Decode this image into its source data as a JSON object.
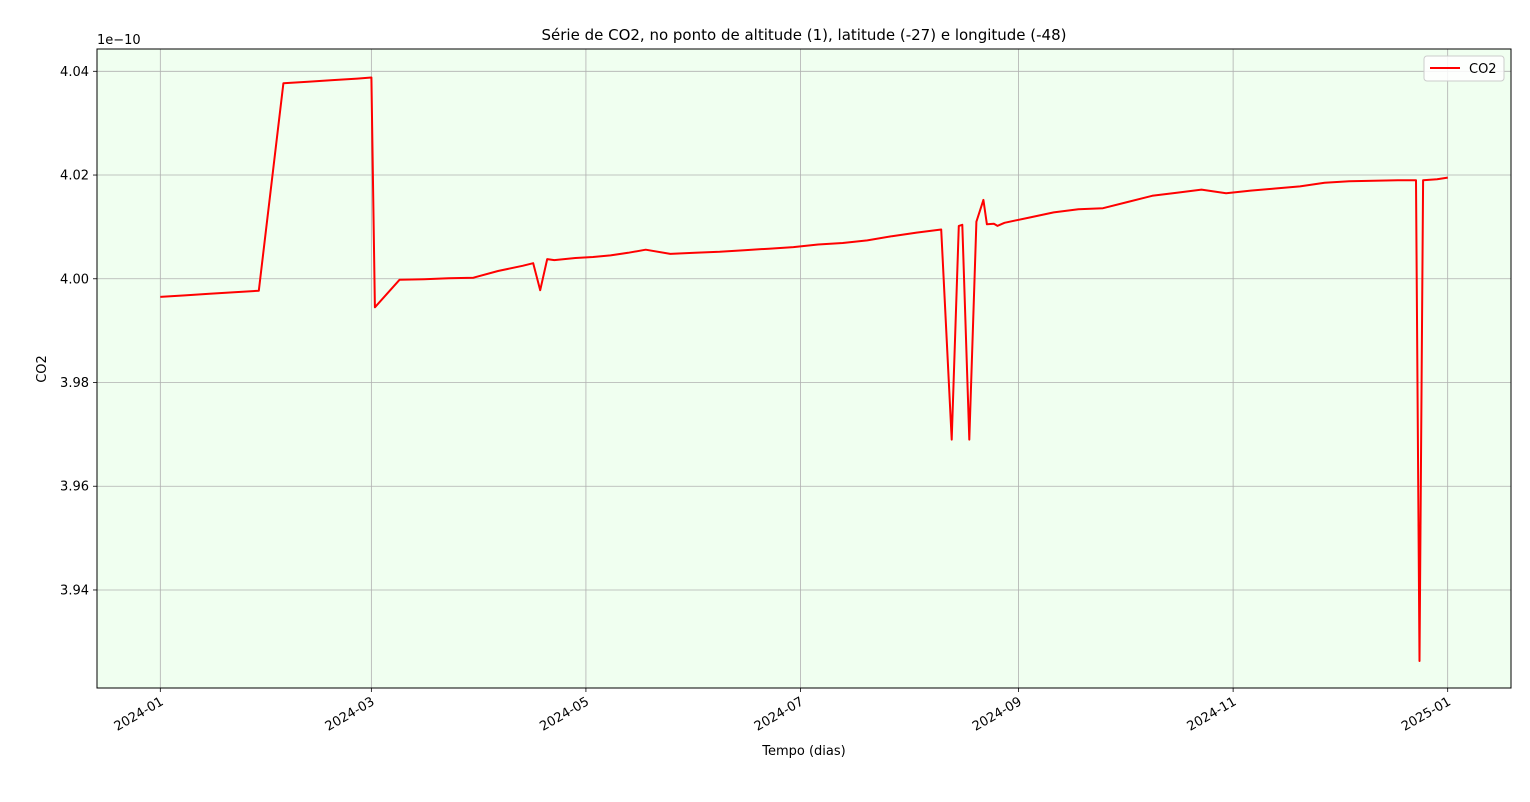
{
  "chart_data": {
    "type": "line",
    "title": "Série de CO2, no ponto de altitude (1), latitude (-27) e longitude (-48)",
    "xlabel": "Tempo (dias)",
    "ylabel": "CO2",
    "y_offset_label": "1e−10",
    "y_scale_factor": 1e-10,
    "xlim": [
      "2023-12-14",
      "2025-01-19"
    ],
    "ylim": [
      3.9211,
      4.0443
    ],
    "x_ticks": [
      "2024-01-01",
      "2024-03-01",
      "2024-05-01",
      "2024-07-01",
      "2024-09-01",
      "2024-11-01",
      "2025-01-01"
    ],
    "x_tick_labels": [
      "2024-01",
      "2024-03",
      "2024-05",
      "2024-07",
      "2024-09",
      "2024-11",
      "2025-01"
    ],
    "y_ticks": [
      3.94,
      3.96,
      3.98,
      4.0,
      4.02,
      4.04
    ],
    "y_tick_labels": [
      "3.94",
      "3.96",
      "3.98",
      "4.00",
      "4.02",
      "4.04"
    ],
    "grid": true,
    "legend": "top-right",
    "colors": {
      "plot_background": "#f0fff0",
      "line": "#ff0000",
      "grid": "#b0b0b0"
    },
    "series": [
      {
        "name": "CO2",
        "x": [
          "2024-01-01",
          "2024-01-08",
          "2024-01-15",
          "2024-01-22",
          "2024-01-29",
          "2024-02-05",
          "2024-02-12",
          "2024-02-19",
          "2024-02-26",
          "2024-03-01",
          "2024-03-02",
          "2024-03-09",
          "2024-03-16",
          "2024-03-23",
          "2024-03-30",
          "2024-04-06",
          "2024-04-13",
          "2024-04-16",
          "2024-04-18",
          "2024-04-20",
          "2024-04-22",
          "2024-04-28",
          "2024-05-03",
          "2024-05-08",
          "2024-05-13",
          "2024-05-18",
          "2024-05-25",
          "2024-06-01",
          "2024-06-08",
          "2024-06-15",
          "2024-06-22",
          "2024-06-29",
          "2024-07-06",
          "2024-07-13",
          "2024-07-20",
          "2024-07-27",
          "2024-08-03",
          "2024-08-10",
          "2024-08-13",
          "2024-08-15",
          "2024-08-16",
          "2024-08-18",
          "2024-08-20",
          "2024-08-22",
          "2024-08-23",
          "2024-08-25",
          "2024-08-26",
          "2024-08-27",
          "2024-08-28",
          "2024-09-04",
          "2024-09-11",
          "2024-09-18",
          "2024-09-25",
          "2024-10-02",
          "2024-10-09",
          "2024-10-16",
          "2024-10-23",
          "2024-10-30",
          "2024-11-06",
          "2024-11-13",
          "2024-11-20",
          "2024-11-27",
          "2024-12-04",
          "2024-12-11",
          "2024-12-18",
          "2024-12-23",
          "2024-12-24",
          "2024-12-25",
          "2024-12-29",
          "2025-01-01"
        ],
        "y": [
          3.9965,
          3.9968,
          3.9971,
          3.9974,
          3.9977,
          4.0377,
          4.038,
          4.0383,
          4.0386,
          4.0388,
          3.9945,
          3.9998,
          3.9999,
          4.0001,
          4.0002,
          4.0015,
          4.0025,
          4.003,
          3.9978,
          4.0038,
          4.0036,
          4.004,
          4.0042,
          4.0045,
          4.005,
          4.0056,
          4.0048,
          4.005,
          4.0052,
          4.0055,
          4.0058,
          4.0061,
          4.0066,
          4.0069,
          4.0074,
          4.0082,
          4.0089,
          4.0095,
          3.969,
          4.0102,
          4.0104,
          3.969,
          4.011,
          4.0152,
          4.0105,
          4.0106,
          4.0102,
          4.0105,
          4.0108,
          4.0118,
          4.0128,
          4.0134,
          4.0136,
          4.0148,
          4.016,
          4.0166,
          4.0172,
          4.0165,
          4.017,
          4.0174,
          4.0178,
          4.0185,
          4.0188,
          4.0189,
          4.019,
          4.019,
          3.9263,
          4.019,
          4.0192,
          4.0195
        ]
      }
    ]
  }
}
